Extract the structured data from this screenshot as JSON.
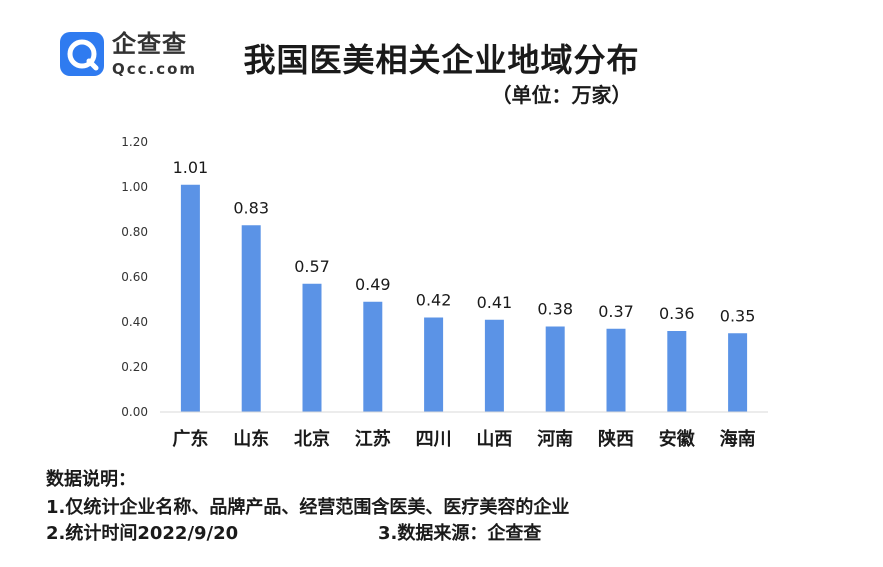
{
  "brand": {
    "name": "企查查",
    "domain": "Qcc.com",
    "color": "#2f7bf0"
  },
  "chart_data": {
    "type": "bar",
    "title": "我国医美相关企业地域分布",
    "subtitle": "（单位：万家）",
    "categories": [
      "广东",
      "山东",
      "北京",
      "江苏",
      "四川",
      "山西",
      "河南",
      "陕西",
      "安徽",
      "海南"
    ],
    "values": [
      1.01,
      0.83,
      0.57,
      0.49,
      0.42,
      0.41,
      0.38,
      0.37,
      0.36,
      0.35
    ],
    "value_labels": [
      "1.01",
      "0.83",
      "0.57",
      "0.49",
      "0.42",
      "0.41",
      "0.38",
      "0.37",
      "0.36",
      "0.35"
    ],
    "ylim": [
      0,
      1.2
    ],
    "yticks": [
      "0.00",
      "0.20",
      "0.40",
      "0.60",
      "0.80",
      "1.00",
      "1.20"
    ],
    "xlabel": "",
    "ylabel": "",
    "grid": false,
    "legend": "none",
    "bar_color": "#5b93e6"
  },
  "notes": {
    "title": "数据说明：",
    "line1": "1.仅统计企业名称、品牌产品、经营范围含医美、医疗美容的企业",
    "line2": "2.统计时间2022/9/20",
    "line3": "3.数据来源：企查查"
  }
}
